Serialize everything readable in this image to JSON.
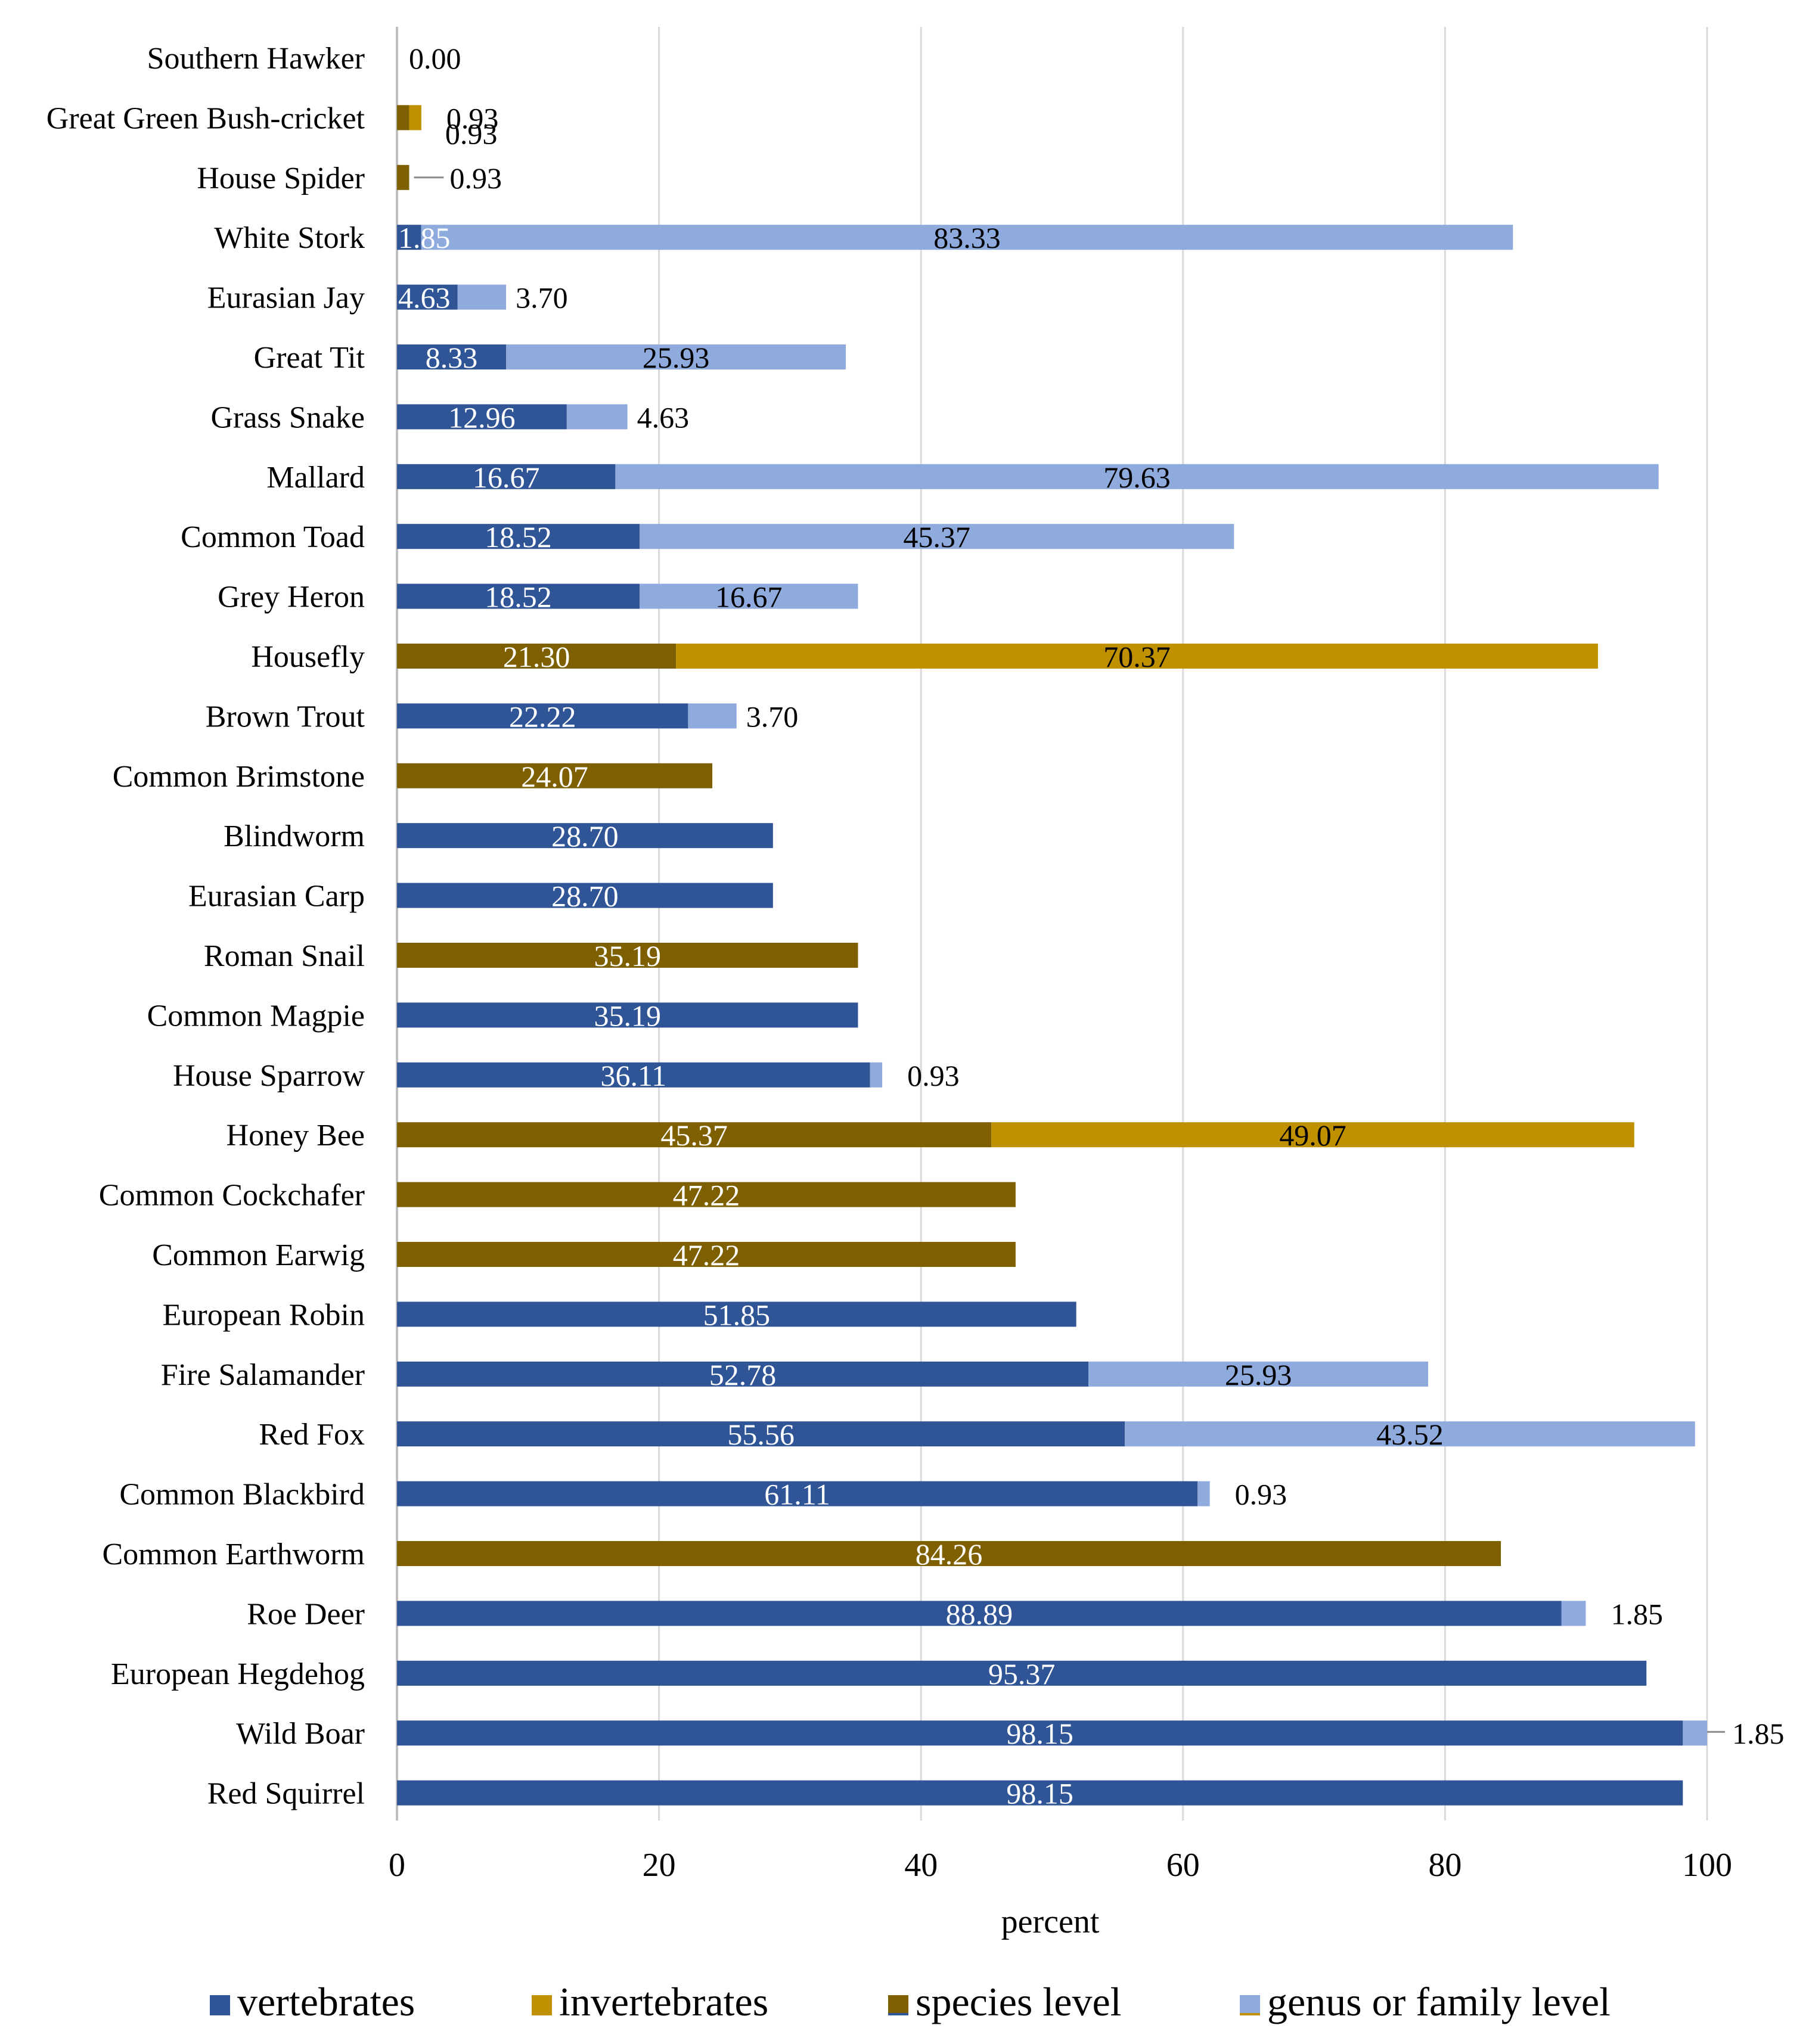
{
  "chart_data": {
    "type": "bar",
    "orientation": "horizontal",
    "stacked": true,
    "xlabel": "percent",
    "xlim": [
      0,
      100
    ],
    "xticks": [
      0,
      20,
      40,
      60,
      80,
      100
    ],
    "grid": "vertical",
    "legend_position": "bottom",
    "legend": [
      {
        "key": "vertebrates",
        "label": "vertebrates",
        "colors": [
          "#2f5597"
        ]
      },
      {
        "key": "invertebrates",
        "label": "invertebrates",
        "colors": [
          "#bf9000"
        ]
      },
      {
        "key": "species",
        "label": "species level",
        "colors": [
          "#7f6000",
          "#2f5597"
        ]
      },
      {
        "key": "genus",
        "label": "genus or family level",
        "colors": [
          "#8faadc",
          "#bf9000"
        ]
      }
    ],
    "colors": {
      "vert_species": "#2f5597",
      "vert_genus": "#8faadc",
      "invert_species": "#7f6000",
      "invert_genus": "#bf9000",
      "grid": "#d9d9d9",
      "axis": "#bfbfbf",
      "text": "#000000",
      "inner_label": "#ffffff"
    },
    "categories": [
      "Southern Hawker",
      "Great Green Bush-cricket",
      "House Spider",
      "White Stork",
      "Eurasian Jay",
      "Great Tit",
      "Grass Snake",
      "Mallard",
      "Common Toad",
      "Grey Heron",
      "Housefly",
      "Brown Trout",
      "Common Brimstone",
      "Blindworm",
      "Eurasian Carp",
      "Roman Snail",
      "Common Magpie",
      "House Sparrow",
      "Honey Bee",
      "Common Cockchafer",
      "Common Earwig",
      "European Robin",
      "Fire Salamander",
      "Red Fox",
      "Common Blackbird",
      "Common Earthworm",
      "Roe Deer",
      "European Hegdehog",
      "Wild Boar",
      "Red Squirrel"
    ],
    "group": [
      "invertebrates",
      "invertebrates",
      "invertebrates",
      "vertebrates",
      "vertebrates",
      "vertebrates",
      "vertebrates",
      "vertebrates",
      "vertebrates",
      "vertebrates",
      "invertebrates",
      "vertebrates",
      "invertebrates",
      "vertebrates",
      "vertebrates",
      "invertebrates",
      "vertebrates",
      "vertebrates",
      "invertebrates",
      "invertebrates",
      "invertebrates",
      "vertebrates",
      "vertebrates",
      "vertebrates",
      "vertebrates",
      "invertebrates",
      "vertebrates",
      "vertebrates",
      "vertebrates",
      "vertebrates"
    ],
    "series": [
      {
        "name": "species level",
        "values": [
          0.0,
          0.93,
          0.93,
          1.85,
          4.63,
          8.33,
          12.96,
          16.67,
          18.52,
          18.52,
          21.3,
          22.22,
          24.07,
          28.7,
          28.7,
          35.19,
          35.19,
          36.11,
          45.37,
          47.22,
          47.22,
          51.85,
          52.78,
          55.56,
          61.11,
          84.26,
          88.89,
          95.37,
          98.15,
          98.15
        ],
        "labels": [
          "0.00",
          "0.93",
          "0.93",
          "1.85",
          "4.63",
          "8.33",
          "12.96",
          "16.67",
          "18.52",
          "18.52",
          "21.30",
          "22.22",
          "24.07",
          "28.70",
          "28.70",
          "35.19",
          "35.19",
          "36.11",
          "45.37",
          "47.22",
          "47.22",
          "51.85",
          "52.78",
          "55.56",
          "61.11",
          "84.26",
          "88.89",
          "95.37",
          "98.15",
          "98.15"
        ]
      },
      {
        "name": "genus or family level",
        "values": [
          null,
          0.93,
          null,
          83.33,
          3.7,
          25.93,
          4.63,
          79.63,
          45.37,
          16.67,
          70.37,
          3.7,
          null,
          null,
          null,
          null,
          null,
          0.93,
          49.07,
          null,
          null,
          null,
          25.93,
          43.52,
          0.93,
          null,
          1.85,
          null,
          1.85,
          null
        ],
        "labels": [
          "",
          "0.93",
          "",
          "83.33",
          "3.70",
          "25.93",
          "4.63",
          "79.63",
          "45.37",
          "16.67",
          "70.37",
          "3.70",
          "",
          "",
          "",
          "",
          "",
          "0.93",
          "49.07",
          "",
          "",
          "",
          "25.93",
          "43.52",
          "0.93",
          "",
          "1.85",
          "",
          "1.85",
          ""
        ]
      }
    ]
  }
}
